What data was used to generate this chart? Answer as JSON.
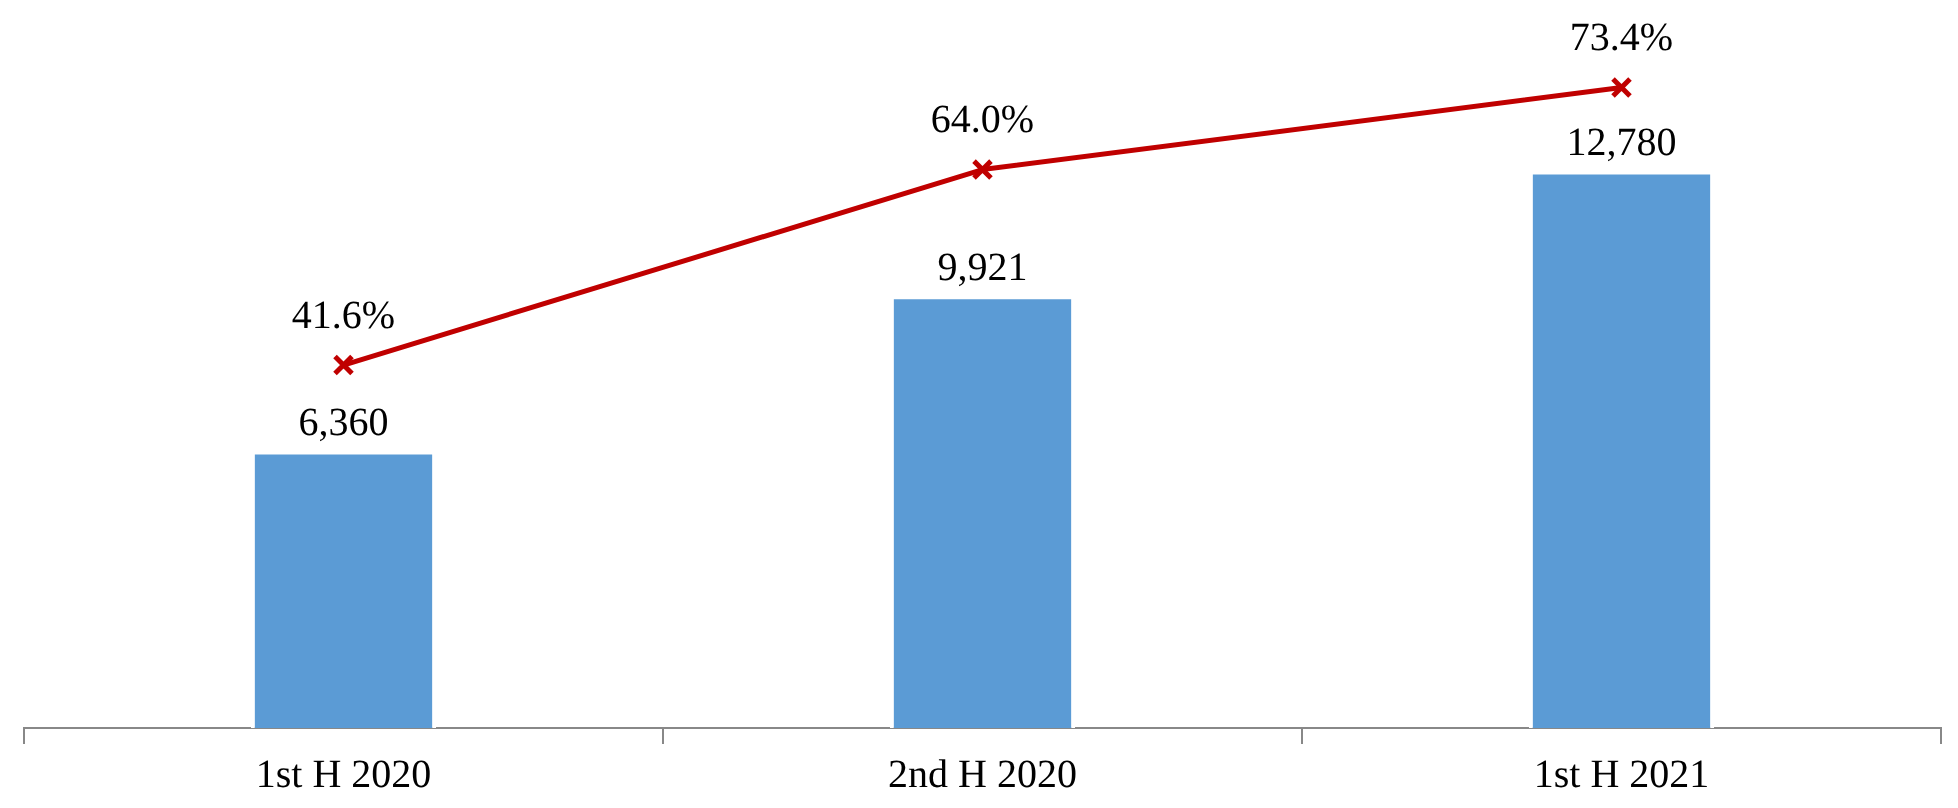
{
  "chart_data": {
    "type": "bar",
    "categories": [
      "1st H 2020",
      "2nd H 2020",
      "1st H 2021"
    ],
    "series": [
      {
        "type": "bar",
        "color": "#5b9bd5",
        "values": [
          6360,
          9921,
          12780
        ],
        "value_labels": [
          "6,360",
          "9,921",
          "12,780"
        ]
      },
      {
        "type": "line",
        "axis": "y2",
        "color": "#c00000",
        "values": [
          41.6,
          64.0,
          73.4
        ],
        "value_labels": [
          "41.6%",
          "64.0%",
          "73.4%"
        ]
      }
    ],
    "tick_labels": "x",
    "grid": false,
    "legend": false,
    "marker": "cross",
    "line_style": "solid"
  }
}
